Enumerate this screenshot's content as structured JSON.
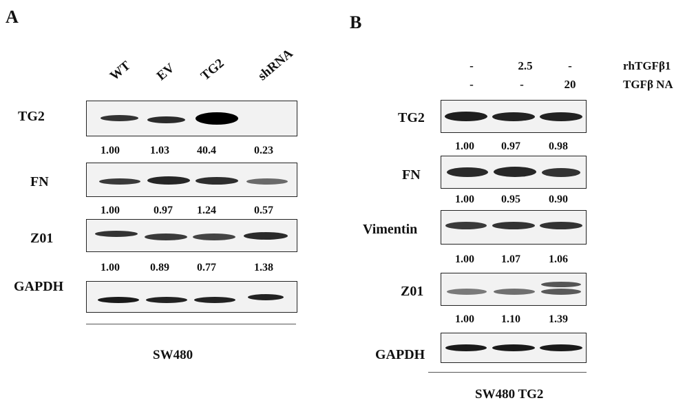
{
  "panel_a": {
    "letter": "A",
    "lanes": [
      "WT",
      "EV",
      "TG2",
      "shRNA"
    ],
    "rows": [
      {
        "label": "TG2",
        "quant": [
          "1.00",
          "1.03",
          "40.4",
          "0.23"
        ],
        "intensity": [
          0.55,
          0.6,
          1.0,
          0.0
        ]
      },
      {
        "label": "FN",
        "quant": [
          "1.00",
          "0.97",
          "1.24",
          "0.57"
        ],
        "intensity": [
          0.6,
          0.75,
          0.7,
          0.45
        ]
      },
      {
        "label": "Z01",
        "quant": [
          "1.00",
          "0.89",
          "0.77",
          "1.38"
        ],
        "intensity": [
          0.65,
          0.6,
          0.55,
          0.75
        ]
      },
      {
        "label": "GAPDH",
        "quant": [],
        "intensity": [
          0.9,
          0.85,
          0.85,
          0.85
        ]
      }
    ],
    "caption": "SW480"
  },
  "panel_b": {
    "letter": "B",
    "conditions": [
      {
        "label": "rhTGFβ1",
        "values": [
          "-",
          "2.5",
          "-"
        ]
      },
      {
        "label": "TGFβ NA",
        "values": [
          "-",
          "-",
          "20"
        ]
      }
    ],
    "rows": [
      {
        "label": "TG2",
        "quant": [
          "1.00",
          "0.97",
          "0.98"
        ],
        "intensity": [
          0.85,
          0.85,
          0.85
        ]
      },
      {
        "label": "FN",
        "quant": [
          "1.00",
          "0.95",
          "0.90"
        ],
        "intensity": [
          0.75,
          0.75,
          0.7
        ]
      },
      {
        "label": "Vimentin",
        "quant": [
          "1.00",
          "1.07",
          "1.06"
        ],
        "intensity": [
          0.65,
          0.7,
          0.7
        ]
      },
      {
        "label": "Z01",
        "quant": [
          "1.00",
          "1.10",
          "1.39"
        ],
        "intensity": [
          0.35,
          0.4,
          0.55
        ]
      },
      {
        "label": "GAPDH",
        "quant": [],
        "intensity": [
          0.9,
          0.9,
          0.9
        ]
      }
    ],
    "caption": "SW480 TG2"
  }
}
